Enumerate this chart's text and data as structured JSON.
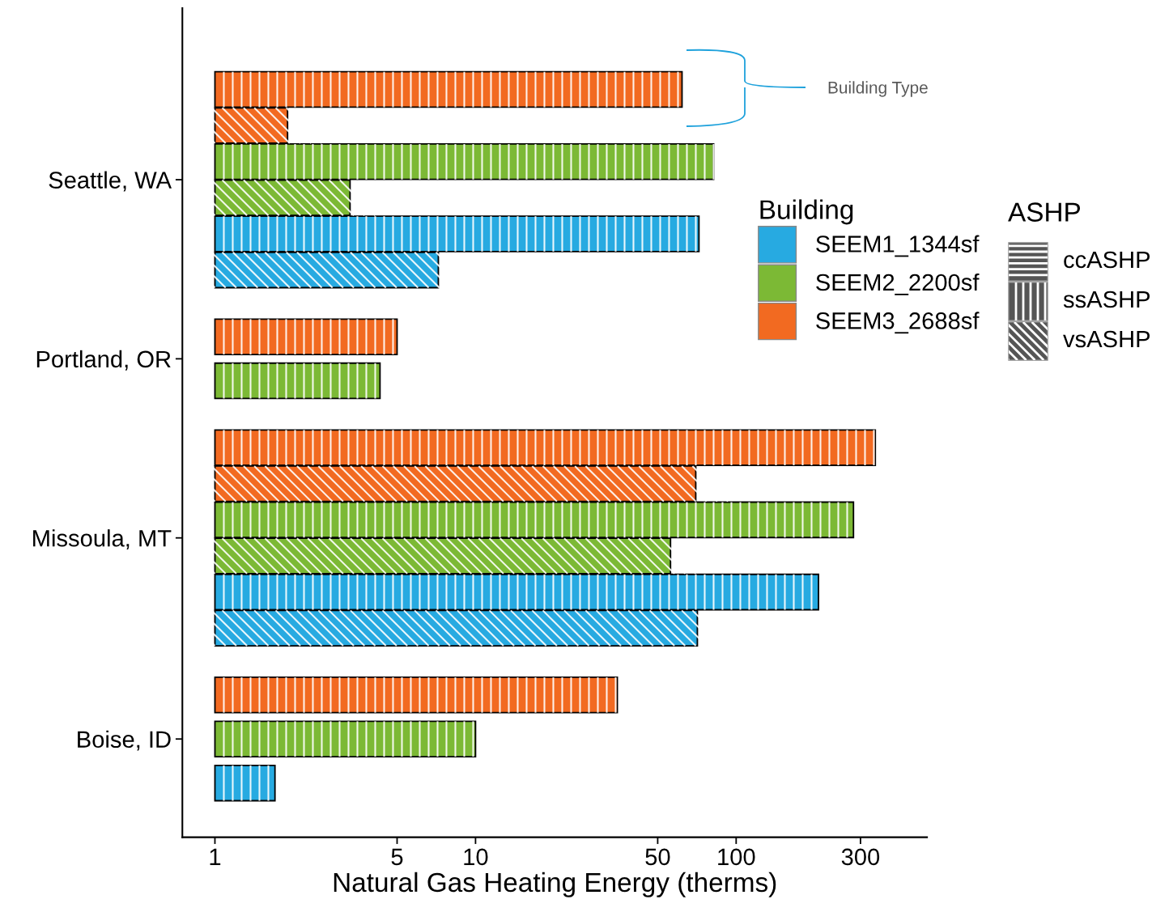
{
  "chart_data": {
    "type": "bar",
    "orientation": "horizontal",
    "xlabel": "Natural Gas Heating Energy (therms)",
    "categories": [
      "Seattle, WA",
      "Portland, OR",
      "Missoula, MT",
      "Boise, ID"
    ],
    "log": "x",
    "xlim": [
      0.75,
      540
    ],
    "xticks": [
      1,
      5,
      10,
      50,
      100,
      300
    ],
    "grid": false,
    "legend": "right",
    "legend_title": "Building",
    "annotations": [
      "Building Type",
      "ASHP",
      "ccASHP",
      "ssASHP",
      "vsASHP"
    ],
    "series": [
      {
        "name": "SEEM3_2688sf",
        "color": "#f26a21",
        "base": [
          1,
          1,
          1,
          1
        ],
        "values": [
          61,
          4.0,
          341,
          34
        ]
      },
      {
        "color": "#f26a21",
        "base": [
          1,
          null,
          1,
          null
        ],
        "values": [
          0.9,
          null,
          69,
          null
        ]
      },
      {
        "name": "SEEM2_2200sf",
        "color": "#7cb935",
        "base": [
          1,
          1,
          1,
          1
        ],
        "values": [
          81,
          3.3,
          281,
          9
        ]
      },
      {
        "color": "#7cb935",
        "base": [
          1,
          null,
          1,
          null
        ],
        "values": [
          2.3,
          null,
          55,
          null
        ]
      },
      {
        "name": "SEEM1_1344sf",
        "color": "#27aae1",
        "base": [
          1,
          null,
          1,
          1
        ],
        "values": [
          71,
          null,
          206,
          0.7
        ]
      },
      {
        "color": "#27aae1",
        "base": [
          1,
          null,
          1,
          null
        ],
        "values": [
          6.2,
          null,
          70,
          null
        ]
      }
    ]
  }
}
